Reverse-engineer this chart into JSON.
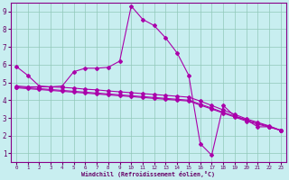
{
  "title": "",
  "xlabel": "Windchill (Refroidissement éolien,°C)",
  "ylabel": "",
  "bg_color": "#c8eef0",
  "grid_color": "#90c8b8",
  "line_color": "#aa00aa",
  "xlim": [
    -0.5,
    23.5
  ],
  "ylim": [
    0.5,
    9.5
  ],
  "xticks": [
    0,
    1,
    2,
    3,
    4,
    5,
    6,
    7,
    8,
    9,
    10,
    11,
    12,
    13,
    14,
    15,
    16,
    17,
    18,
    19,
    20,
    21,
    22,
    23
  ],
  "yticks": [
    1,
    2,
    3,
    4,
    5,
    6,
    7,
    8,
    9
  ],
  "line1_x": [
    0,
    1,
    2,
    3,
    4,
    5,
    6,
    7,
    8,
    9,
    10,
    11,
    12,
    13,
    14,
    15,
    16,
    17,
    18,
    19,
    20,
    21,
    22,
    23
  ],
  "line1_y": [
    5.9,
    5.4,
    4.8,
    4.75,
    4.8,
    5.6,
    5.8,
    5.8,
    5.85,
    6.2,
    9.3,
    8.55,
    8.2,
    7.5,
    6.65,
    5.4,
    1.55,
    0.9,
    3.7,
    3.1,
    2.9,
    2.5,
    2.5,
    2.3
  ],
  "line2_x": [
    0,
    1,
    2,
    3,
    4,
    5,
    6,
    7,
    8,
    9,
    10,
    11,
    12,
    13,
    14,
    15,
    16,
    17,
    18,
    19,
    20,
    21,
    22,
    23
  ],
  "line2_y": [
    4.8,
    4.75,
    4.75,
    4.75,
    4.72,
    4.68,
    4.62,
    4.58,
    4.52,
    4.47,
    4.42,
    4.37,
    4.32,
    4.27,
    4.22,
    4.17,
    3.95,
    3.7,
    3.45,
    3.2,
    2.95,
    2.75,
    2.55,
    2.3
  ],
  "line3_x": [
    0,
    1,
    2,
    3,
    4,
    5,
    6,
    7,
    8,
    9,
    10,
    11,
    12,
    13,
    14,
    15,
    16,
    17,
    18,
    19,
    20,
    21,
    22,
    23
  ],
  "line3_y": [
    4.75,
    4.7,
    4.65,
    4.6,
    4.55,
    4.5,
    4.45,
    4.4,
    4.35,
    4.3,
    4.25,
    4.2,
    4.15,
    4.1,
    4.05,
    4.0,
    3.78,
    3.55,
    3.32,
    3.1,
    2.88,
    2.7,
    2.52,
    2.3
  ],
  "line4_x": [
    0,
    1,
    2,
    3,
    4,
    5,
    6,
    7,
    8,
    9,
    10,
    11,
    12,
    13,
    14,
    15,
    16,
    17,
    18,
    19,
    20,
    21,
    22,
    23
  ],
  "line4_y": [
    4.7,
    4.65,
    4.6,
    4.55,
    4.5,
    4.45,
    4.4,
    4.35,
    4.3,
    4.25,
    4.2,
    4.15,
    4.1,
    4.05,
    4.0,
    3.95,
    3.72,
    3.5,
    3.27,
    3.05,
    2.82,
    2.65,
    2.48,
    2.3
  ]
}
